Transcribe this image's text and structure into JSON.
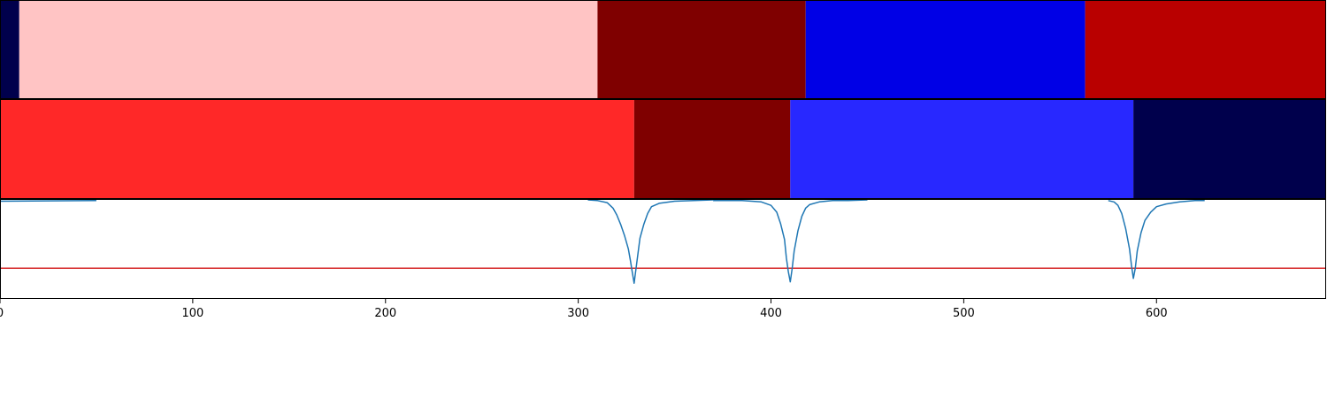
{
  "chart_data": {
    "type": "heatmap",
    "x_range": [
      0,
      688
    ],
    "x_ticks": [
      "0",
      "100",
      "200",
      "300",
      "400",
      "500",
      "600"
    ],
    "x_tick_values": [
      0,
      100,
      200,
      300,
      400,
      500,
      600
    ],
    "tracks": [
      {
        "segments": [
          {
            "start": 0,
            "end": 10,
            "color": "#00004c"
          },
          {
            "start": 10,
            "end": 310,
            "color": "#ffc4c4"
          },
          {
            "start": 310,
            "end": 418,
            "color": "#7f0000"
          },
          {
            "start": 418,
            "end": 563,
            "color": "#0000e6"
          },
          {
            "start": 563,
            "end": 688,
            "color": "#b90000"
          }
        ]
      },
      {
        "segments": [
          {
            "start": 0,
            "end": 329,
            "color": "#ff2828"
          },
          {
            "start": 329,
            "end": 410,
            "color": "#7f0000"
          },
          {
            "start": 410,
            "end": 588,
            "color": "#2828ff"
          },
          {
            "start": 588,
            "end": 688,
            "color": "#00004c"
          }
        ]
      }
    ],
    "line_track": {
      "ylim": [
        -1.45,
        0.0
      ],
      "threshold": -1.0,
      "threshold_color": "#d62728",
      "line_color": "#1f77b4",
      "series": [
        {
          "x": [
            0,
            50
          ],
          "y": [
            -0.02,
            -0.01
          ]
        },
        {
          "x": [
            305,
            310,
            315,
            318,
            320,
            322,
            324,
            326,
            327,
            328,
            329,
            330,
            331,
            332,
            334,
            336,
            338,
            342,
            350,
            360,
            370
          ],
          "y": [
            -0.0,
            -0.01,
            -0.04,
            -0.12,
            -0.22,
            -0.36,
            -0.52,
            -0.72,
            -0.88,
            -1.05,
            -1.22,
            -1.0,
            -0.78,
            -0.56,
            -0.36,
            -0.2,
            -0.1,
            -0.05,
            -0.02,
            -0.01,
            -0.0
          ]
        },
        {
          "x": [
            370,
            385,
            395,
            400,
            403,
            405,
            407,
            408,
            409,
            410,
            411,
            412,
            414,
            416,
            418,
            420,
            425,
            432,
            440,
            450
          ],
          "y": [
            -0.01,
            -0.01,
            -0.03,
            -0.08,
            -0.18,
            -0.35,
            -0.58,
            -0.85,
            -1.05,
            -1.2,
            -1.0,
            -0.75,
            -0.45,
            -0.24,
            -0.12,
            -0.07,
            -0.03,
            -0.01,
            -0.01,
            -0.0
          ]
        },
        {
          "x": [
            575,
            578,
            580,
            582,
            584,
            586,
            587,
            588,
            589,
            590,
            592,
            594,
            597,
            600,
            605,
            612,
            620,
            625
          ],
          "y": [
            -0.01,
            -0.03,
            -0.08,
            -0.2,
            -0.42,
            -0.72,
            -0.95,
            -1.15,
            -1.0,
            -0.75,
            -0.48,
            -0.3,
            -0.18,
            -0.1,
            -0.06,
            -0.03,
            -0.01,
            -0.01
          ]
        }
      ]
    }
  }
}
